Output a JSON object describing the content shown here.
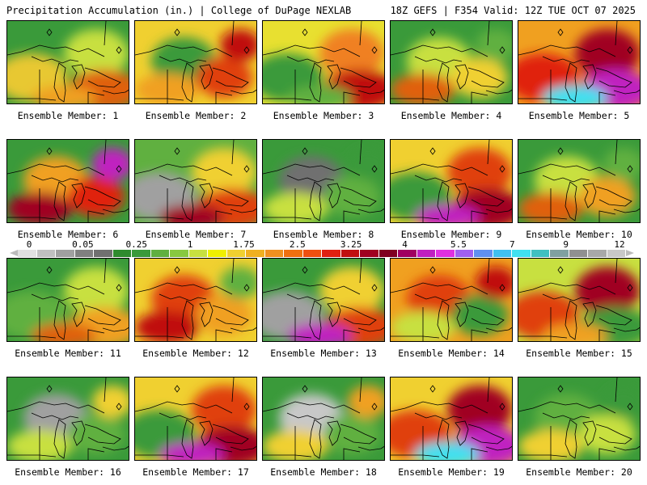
{
  "header": {
    "title": "Precipitation Accumulation (in.) | College of DuPage NEXLAB",
    "run_info": "18Z GEFS | F354 Valid: 12Z TUE OCT 07 2025"
  },
  "panels": [
    {
      "label": "Ensemble Member: 1",
      "base": "#3a9a3a",
      "blobs": [
        [
          "#e8c830"
        ],
        [
          "#c8e040"
        ],
        [
          "#e06010"
        ],
        [
          "#f0a020"
        ]
      ]
    },
    {
      "label": "Ensemble Member: 2",
      "base": "#f0d030",
      "blobs": [
        [
          "#3a9a3a"
        ],
        [
          "#e04010"
        ],
        [
          "#f0a020"
        ],
        [
          "#c01010"
        ]
      ]
    },
    {
      "label": "Ensemble Member: 3",
      "base": "#e8e030",
      "blobs": [
        [
          "#3a9a3a"
        ],
        [
          "#f08020"
        ],
        [
          "#c01010"
        ],
        [
          "#60b040"
        ]
      ]
    },
    {
      "label": "Ensemble Member: 4",
      "base": "#3a9a3a",
      "blobs": [
        [
          "#c8e040"
        ],
        [
          "#f0d030"
        ],
        [
          "#e06010"
        ],
        [
          "#60b040"
        ]
      ]
    },
    {
      "label": "Ensemble Member: 5",
      "base": "#f0a020",
      "blobs": [
        [
          "#e02010"
        ],
        [
          "#a00020"
        ],
        [
          "#c020c0"
        ],
        [
          "#40e0f0"
        ]
      ]
    },
    {
      "label": "Ensemble Member: 6",
      "base": "#3a9a3a",
      "blobs": [
        [
          "#f0a020"
        ],
        [
          "#e02010"
        ],
        [
          "#a00020"
        ],
        [
          "#c020c0"
        ]
      ]
    },
    {
      "label": "Ensemble Member: 7",
      "base": "#60b040",
      "blobs": [
        [
          "#a0a0a0"
        ],
        [
          "#f0d030"
        ],
        [
          "#e04010"
        ],
        [
          "#a00020"
        ]
      ]
    },
    {
      "label": "Ensemble Member: 8",
      "base": "#3a9a3a",
      "blobs": [
        [
          "#707070"
        ],
        [
          "#60b040"
        ],
        [
          "#c8e040"
        ],
        [
          "#3a9a3a"
        ]
      ]
    },
    {
      "label": "Ensemble Member: 9",
      "base": "#f0d030",
      "blobs": [
        [
          "#3a9a3a"
        ],
        [
          "#e04010"
        ],
        [
          "#a00020"
        ],
        [
          "#c020c0"
        ]
      ]
    },
    {
      "label": "Ensemble Member: 10",
      "base": "#3a9a3a",
      "blobs": [
        [
          "#c8e040"
        ],
        [
          "#f0a020"
        ],
        [
          "#e06010"
        ],
        [
          "#60b040"
        ]
      ]
    },
    {
      "label": "Ensemble Member: 11",
      "base": "#3a9a3a",
      "blobs": [
        [
          "#60b040"
        ],
        [
          "#c8e040"
        ],
        [
          "#f0a020"
        ],
        [
          "#e06010"
        ]
      ]
    },
    {
      "label": "Ensemble Member: 12",
      "base": "#f0d030",
      "blobs": [
        [
          "#e04010"
        ],
        [
          "#f0a020"
        ],
        [
          "#c01010"
        ],
        [
          "#60b040"
        ]
      ]
    },
    {
      "label": "Ensemble Member: 13",
      "base": "#3a9a3a",
      "blobs": [
        [
          "#a0a0a0"
        ],
        [
          "#f0d030"
        ],
        [
          "#e04010"
        ],
        [
          "#c020c0"
        ]
      ]
    },
    {
      "label": "Ensemble Member: 14",
      "base": "#f0a020",
      "blobs": [
        [
          "#e04010"
        ],
        [
          "#3a9a3a"
        ],
        [
          "#c8e040"
        ],
        [
          "#c01010"
        ]
      ]
    },
    {
      "label": "Ensemble Member: 15",
      "base": "#c8e040",
      "blobs": [
        [
          "#e04010"
        ],
        [
          "#a00020"
        ],
        [
          "#3a9a3a"
        ],
        [
          "#f0a020"
        ]
      ]
    },
    {
      "label": "Ensemble Member: 16",
      "base": "#3a9a3a",
      "blobs": [
        [
          "#a0a0a0"
        ],
        [
          "#60b040"
        ],
        [
          "#c8e040"
        ],
        [
          "#f0d030"
        ]
      ]
    },
    {
      "label": "Ensemble Member: 17",
      "base": "#f0d030",
      "blobs": [
        [
          "#3a9a3a"
        ],
        [
          "#e04010"
        ],
        [
          "#a00020"
        ],
        [
          "#c020c0"
        ]
      ]
    },
    {
      "label": "Ensemble Member: 18",
      "base": "#3a9a3a",
      "blobs": [
        [
          "#c8c8c8"
        ],
        [
          "#60b040"
        ],
        [
          "#f0d030"
        ],
        [
          "#f0a020"
        ]
      ]
    },
    {
      "label": "Ensemble Member: 19",
      "base": "#f0d030",
      "blobs": [
        [
          "#e04010"
        ],
        [
          "#a00020"
        ],
        [
          "#c020c0"
        ],
        [
          "#40e0f0"
        ]
      ]
    },
    {
      "label": "Ensemble Member: 20",
      "base": "#3a9a3a",
      "blobs": [
        [
          "#60b040"
        ],
        [
          "#c8e040"
        ],
        [
          "#f0d030"
        ],
        [
          "#3a9a3a"
        ]
      ]
    }
  ],
  "colorbar": {
    "labels": [
      "0",
      "0.05",
      "0.25",
      "1",
      "1.75",
      "2.5",
      "3.25",
      "4",
      "5.5",
      "7",
      "9",
      "12"
    ],
    "colors": [
      "#e0e0e0",
      "#c0c0c0",
      "#a0a0a0",
      "#808080",
      "#707070",
      "#2e8b2e",
      "#3a9a3a",
      "#60b040",
      "#88c840",
      "#c8e040",
      "#f0f000",
      "#f0d030",
      "#f0b020",
      "#f09020",
      "#f07010",
      "#f05010",
      "#e02010",
      "#c01010",
      "#a00020",
      "#800020",
      "#a00060",
      "#c020c0",
      "#e030e0",
      "#a060f0",
      "#6090f0",
      "#40c0f0",
      "#40e0f0",
      "#40c0c0",
      "#80a0a0",
      "#909090",
      "#a8a8a8",
      "#c8c8c8"
    ]
  }
}
